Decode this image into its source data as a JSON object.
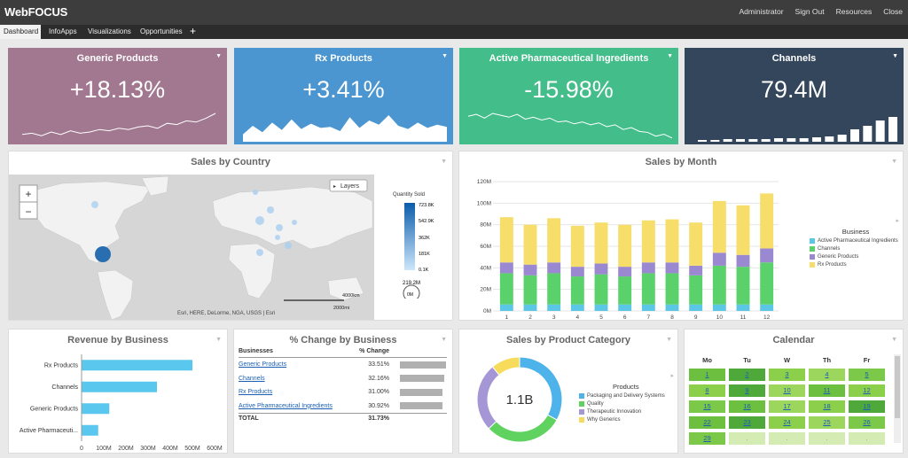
{
  "app": {
    "logo": "WebFOCUS",
    "links": [
      "Administrator",
      "Sign Out",
      "Resources",
      "Close"
    ]
  },
  "tabs": [
    "Dashboard",
    "InfoApps",
    "Visualizations",
    "Opportunities"
  ],
  "add_tab_icon": "plus-icon",
  "kpis": [
    {
      "title": "Generic Products",
      "value": "+18.13%",
      "color": "#a27890"
    },
    {
      "title": "Rx Products",
      "value": "+3.41%",
      "color": "#4b96d0"
    },
    {
      "title": "Active Pharmaceutical Ingredients",
      "value": "-15.98%",
      "color": "#43be8a"
    },
    {
      "title": "Channels",
      "value": "79.4M",
      "color": "#33465b"
    }
  ],
  "map": {
    "title": "Sales by Country",
    "layers_label": "Layers",
    "legend_title": "Quantity Sold",
    "legend_ticks": [
      "723.8K",
      "542.9K",
      "362K",
      "181K",
      "0.1K"
    ],
    "bubble_value": "219.2M",
    "bubble_small": "0M",
    "scale_label": "4000km",
    "scale_label2": "2000mi",
    "attribution": "Esri, HERE, DeLorme, NGA, USGS | Esri",
    "zoom_in": "+",
    "zoom_out": "−"
  },
  "monthly": {
    "title": "Sales by Month",
    "legend_title": "Business",
    "legend": [
      "Active Pharmaceutical Ingredients",
      "Channels",
      "Generic Products",
      "Rx Products"
    ],
    "colors": [
      "#5bc6e6",
      "#5ad16a",
      "#9a88d0",
      "#f7dd6a"
    ]
  },
  "revenue": {
    "title": "Revenue by Business",
    "axis_ticks": [
      "0",
      "100M",
      "200M",
      "300M",
      "400M",
      "500M",
      "600M"
    ]
  },
  "pct": {
    "title": "% Change by Business",
    "col1": "Businesses",
    "col2": "% Change",
    "rows": [
      {
        "name": "Generic Products",
        "value": "33.51%"
      },
      {
        "name": "Channels",
        "value": "32.16%"
      },
      {
        "name": "Rx Products",
        "value": "31.00%"
      },
      {
        "name": "Active Pharmaceutical Ingredients",
        "value": "30.92%"
      }
    ],
    "total_label": "TOTAL",
    "total_value": "31.73%"
  },
  "category": {
    "title": "Sales by Product Category",
    "center": "1.1B",
    "legend_title": "Products",
    "legend": [
      "Packaging and Delivery Systems",
      "Quality",
      "Therapeutic Innovation",
      "Why Generics"
    ],
    "colors": [
      "#4db3ea",
      "#5fd25f",
      "#a596d6",
      "#f7dc5b"
    ]
  },
  "calendar": {
    "title": "Calendar",
    "days": [
      "Mo",
      "Tu",
      "W",
      "Th",
      "Fr"
    ],
    "cells": [
      "1",
      "2",
      "3",
      "4",
      "5",
      "8",
      "9",
      "10",
      "11",
      "12",
      "15",
      "16",
      "17",
      "18",
      "19",
      "22",
      "23",
      "24",
      "25",
      "26",
      "29",
      ".",
      ".",
      ".",
      "."
    ]
  },
  "chart_data": [
    {
      "type": "bar",
      "title": "Sales by Month",
      "categories": [
        "1",
        "2",
        "3",
        "4",
        "5",
        "6",
        "7",
        "8",
        "9",
        "10",
        "11",
        "12"
      ],
      "ylim": [
        0,
        120
      ],
      "yticks": [
        "0M",
        "20M",
        "40M",
        "60M",
        "80M",
        "100M",
        "120M"
      ],
      "series": [
        {
          "name": "Active Pharmaceutical Ingredients",
          "values": [
            6,
            6,
            6,
            6,
            6,
            6,
            6,
            6,
            6,
            6,
            6,
            6
          ]
        },
        {
          "name": "Channels",
          "values": [
            29,
            27,
            29,
            26,
            28,
            26,
            29,
            29,
            27,
            36,
            35,
            39
          ]
        },
        {
          "name": "Generic Products",
          "values": [
            10,
            10,
            10,
            9,
            10,
            9,
            10,
            10,
            9,
            12,
            11,
            13
          ]
        },
        {
          "name": "Rx Products",
          "values": [
            42,
            37,
            41,
            38,
            38,
            39,
            39,
            40,
            40,
            48,
            46,
            51
          ]
        }
      ]
    },
    {
      "type": "bar",
      "title": "Revenue by Business",
      "categories": [
        "Rx Products",
        "Channels",
        "Generic Products",
        "Active Pharmaceutical Ingredients"
      ],
      "category_labels": [
        "Rx Products",
        "Channels",
        "Generic Products",
        "Active Pharmaceuti..."
      ],
      "values": [
        500,
        340,
        125,
        75
      ],
      "xlim": [
        0,
        600
      ]
    },
    {
      "type": "pie",
      "title": "Sales by Product Category",
      "categories": [
        "Packaging and Delivery Systems",
        "Quality",
        "Therapeutic Innovation",
        "Why Generics"
      ],
      "values": [
        33,
        30,
        26,
        11
      ]
    },
    {
      "type": "line",
      "title": "Generic Products",
      "values": [
        3,
        4,
        2,
        5,
        3,
        6,
        4,
        5,
        7,
        6,
        8,
        7,
        9,
        10,
        8,
        12,
        11,
        14,
        13,
        16,
        20
      ]
    },
    {
      "type": "area",
      "title": "Rx Products",
      "values": [
        7,
        15,
        9,
        18,
        11,
        21,
        12,
        17,
        13,
        14,
        10,
        23,
        13,
        20,
        16,
        25,
        15,
        12,
        18,
        13,
        16,
        14
      ]
    },
    {
      "type": "line",
      "title": "Active Pharmaceutical Ingredients",
      "values": [
        25,
        27,
        23,
        28,
        26,
        24,
        27,
        22,
        24,
        21,
        23,
        19,
        20,
        17,
        19,
        16,
        18,
        14,
        16,
        11,
        13,
        9,
        8,
        4,
        6,
        2
      ]
    },
    {
      "type": "bar",
      "title": "Channels",
      "values": [
        2,
        2,
        3,
        3,
        3,
        3,
        4,
        4,
        4,
        5,
        6,
        8,
        14,
        18,
        24,
        28
      ]
    }
  ]
}
